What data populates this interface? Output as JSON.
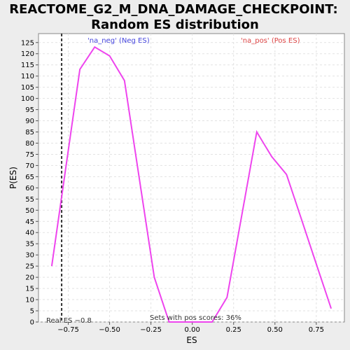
{
  "chart_data": {
    "type": "line",
    "title_line1": "REACTOME_G2_M_DNA_DAMAGE_CHECKPOINT:",
    "title_line2": "Random ES distribution",
    "xlabel": "ES",
    "ylabel": "P(ES)",
    "xlim": [
      -0.93,
      0.92
    ],
    "ylim": [
      0,
      129
    ],
    "x_ticks": [
      -0.75,
      -0.5,
      -0.25,
      0.0,
      0.25,
      0.5,
      0.75
    ],
    "x_tick_labels": [
      "−0.75",
      "−0.50",
      "−0.25",
      "0.00",
      "0.25",
      "0.50",
      "0.75"
    ],
    "y_ticks": [
      0,
      5,
      10,
      15,
      20,
      25,
      30,
      35,
      40,
      45,
      50,
      55,
      60,
      65,
      70,
      75,
      80,
      85,
      90,
      95,
      100,
      105,
      110,
      115,
      120,
      125
    ],
    "grid": true,
    "series": [
      {
        "color": "#ee44ee",
        "x": [
          -0.85,
          -0.68,
          -0.59,
          -0.5,
          -0.41,
          -0.23,
          -0.14,
          -0.05,
          0.03,
          0.12,
          0.21,
          0.39,
          0.48,
          0.57,
          0.66,
          0.75,
          0.84
        ],
        "y": [
          25,
          113,
          123,
          119,
          108,
          20,
          0,
          0,
          0,
          0,
          11,
          85,
          74,
          66,
          46,
          26,
          6
        ]
      }
    ],
    "real_es": -0.79,
    "legend_neg": "'na_neg' (Neg ES)",
    "legend_pos": "'na_pos' (Pos ES)",
    "real_es_label": "Real ES −0.8",
    "pos_scores_label": "Sets with pos scores: 36%"
  }
}
